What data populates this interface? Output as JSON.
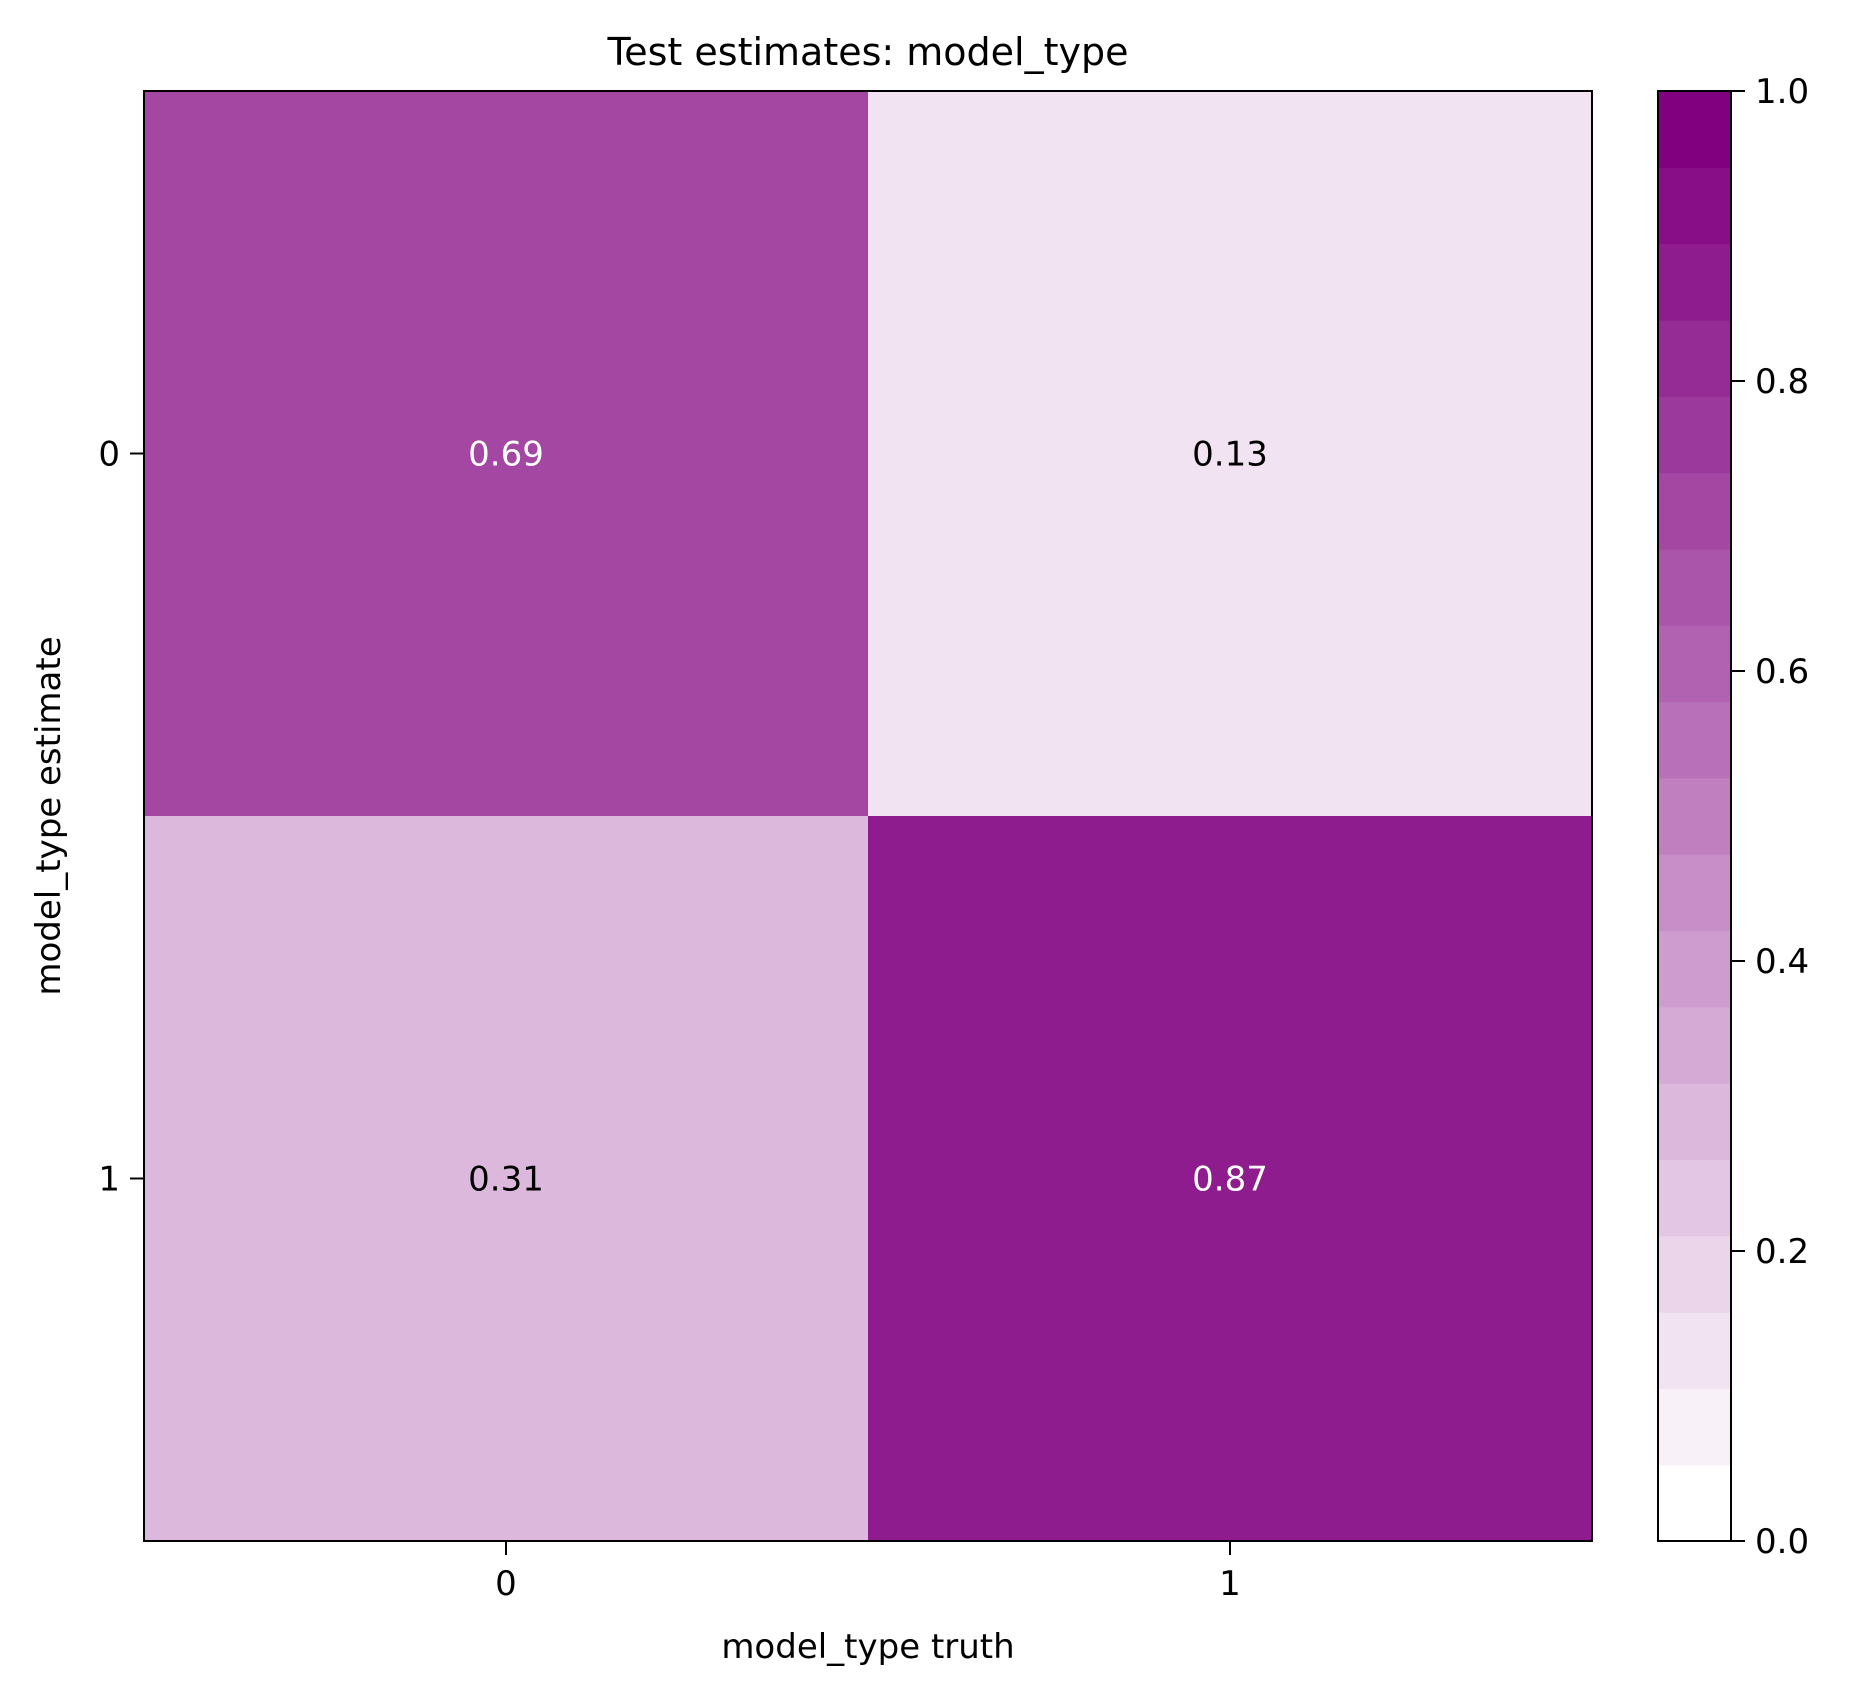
{
  "chart_data": {
    "type": "heatmap",
    "title": "Test estimates: model_type",
    "xlabel": "model_type truth",
    "ylabel": "model_type estimate",
    "x_categories": [
      "0",
      "1"
    ],
    "y_categories": [
      "0",
      "1"
    ],
    "values": [
      [
        0.69,
        0.13
      ],
      [
        0.31,
        0.87
      ]
    ],
    "value_labels": [
      [
        "0.69",
        "0.13"
      ],
      [
        "0.31",
        "0.87"
      ]
    ],
    "colorbar": {
      "range": [
        0.0,
        1.0
      ],
      "ticks": [
        "0.0",
        "0.2",
        "0.4",
        "0.6",
        "0.8",
        "1.0"
      ],
      "levels": 19,
      "color_low": "#ffffff",
      "color_high": "#800080"
    }
  }
}
